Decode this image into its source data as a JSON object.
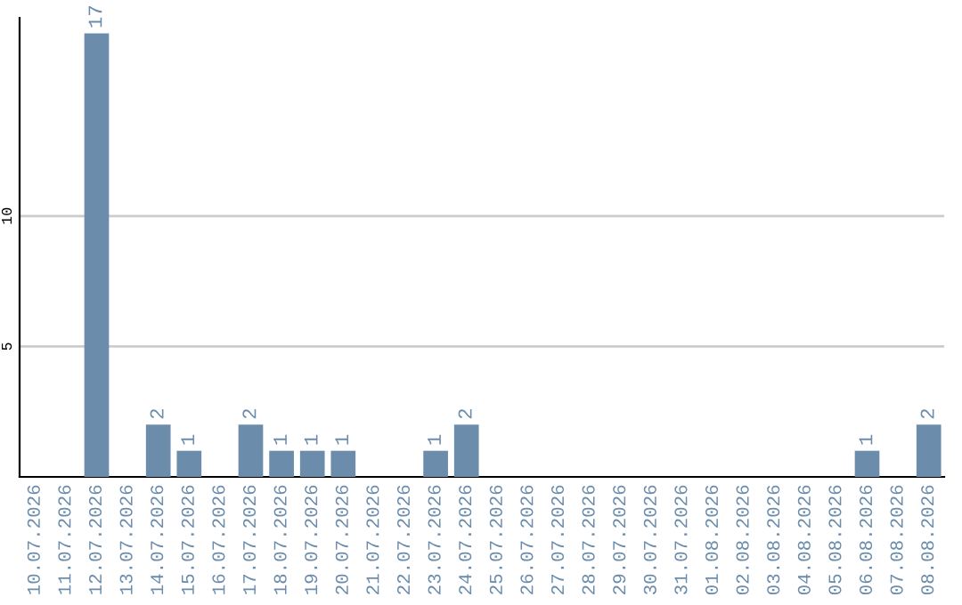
{
  "chart_data": {
    "type": "bar",
    "categories": [
      "10.07.2026",
      "11.07.2026",
      "12.07.2026",
      "13.07.2026",
      "14.07.2026",
      "15.07.2026",
      "16.07.2026",
      "17.07.2026",
      "18.07.2026",
      "19.07.2026",
      "20.07.2026",
      "21.07.2026",
      "22.07.2026",
      "23.07.2026",
      "24.07.2026",
      "25.07.2026",
      "26.07.2026",
      "27.07.2026",
      "28.07.2026",
      "29.07.2026",
      "30.07.2026",
      "31.07.2026",
      "01.08.2026",
      "02.08.2026",
      "03.08.2026",
      "04.08.2026",
      "05.08.2026",
      "06.08.2026",
      "07.08.2026",
      "08.08.2026"
    ],
    "values": [
      0,
      0,
      17,
      0,
      2,
      1,
      0,
      2,
      1,
      1,
      1,
      0,
      0,
      1,
      2,
      0,
      0,
      0,
      0,
      0,
      0,
      0,
      0,
      0,
      0,
      0,
      0,
      1,
      0,
      2
    ],
    "value_labels": [
      null,
      null,
      "17",
      null,
      "2",
      "1",
      null,
      "2",
      "1",
      "1",
      "1",
      null,
      null,
      "1",
      "2",
      null,
      null,
      null,
      null,
      null,
      null,
      null,
      null,
      null,
      null,
      null,
      null,
      "1",
      null,
      "2"
    ],
    "color": "#6b8cab",
    "ylim": [
      0,
      17.6
    ],
    "yticks": [
      5,
      10
    ],
    "grid": "y"
  }
}
